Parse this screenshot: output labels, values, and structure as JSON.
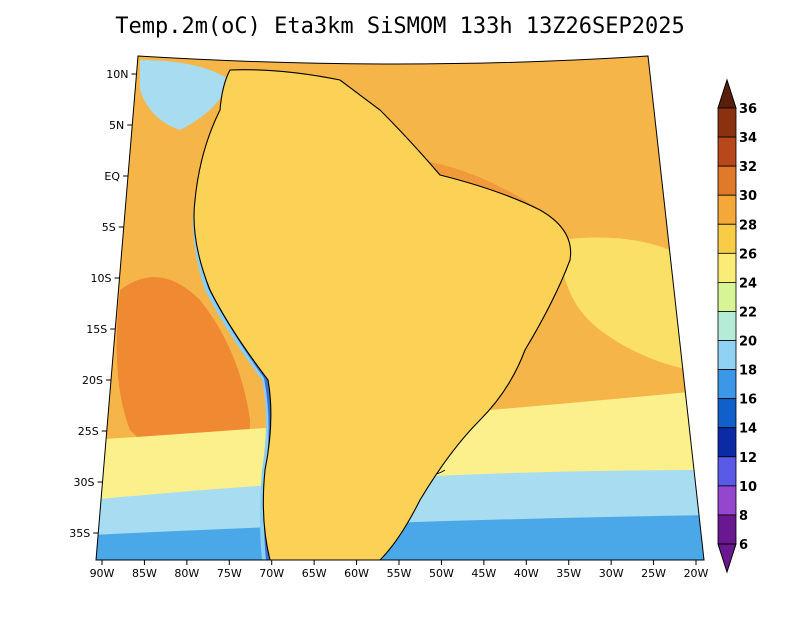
{
  "title": "Temp.2m(oC) Eta3km SiSMOM 133h 13Z26SEP2025",
  "lon_labels": [
    "90W",
    "85W",
    "80W",
    "75W",
    "70W",
    "65W",
    "60W",
    "55W",
    "50W",
    "45W",
    "40W",
    "35W",
    "30W",
    "25W",
    "20W"
  ],
  "lat_labels": [
    "10N",
    "5N",
    "EQ",
    "5S",
    "10S",
    "15S",
    "20S",
    "25S",
    "30S",
    "35S"
  ],
  "colorbar": {
    "labels": [
      "36",
      "34",
      "32",
      "30",
      "28",
      "26",
      "24",
      "22",
      "20",
      "18",
      "16",
      "14",
      "12",
      "10",
      "8",
      "6"
    ],
    "colors": [
      "#5a1e0a",
      "#8a3210",
      "#b8481a",
      "#e07a28",
      "#f5a83a",
      "#f9cc48",
      "#fbec78",
      "#d8f596",
      "#b4ecd8",
      "#8fd2f4",
      "#3c98e6",
      "#1060cc",
      "#0a2aa6",
      "#5a5ae8",
      "#9446cc",
      "#6a1890"
    ]
  },
  "palette": {
    "ocean_warm": "#f6b548",
    "ocean_hot": "#ef8a32",
    "ocean_mild": "#fbe068",
    "ocean_cool": "#fbf08c",
    "ocean_cold": "#a8dcf0",
    "land_base": "#fbd255",
    "land_hot": "#f09a3c",
    "andes_cold": "#6a30b0",
    "andes_mid": "#3c70d8",
    "andes_edge": "#8ad0f0"
  }
}
